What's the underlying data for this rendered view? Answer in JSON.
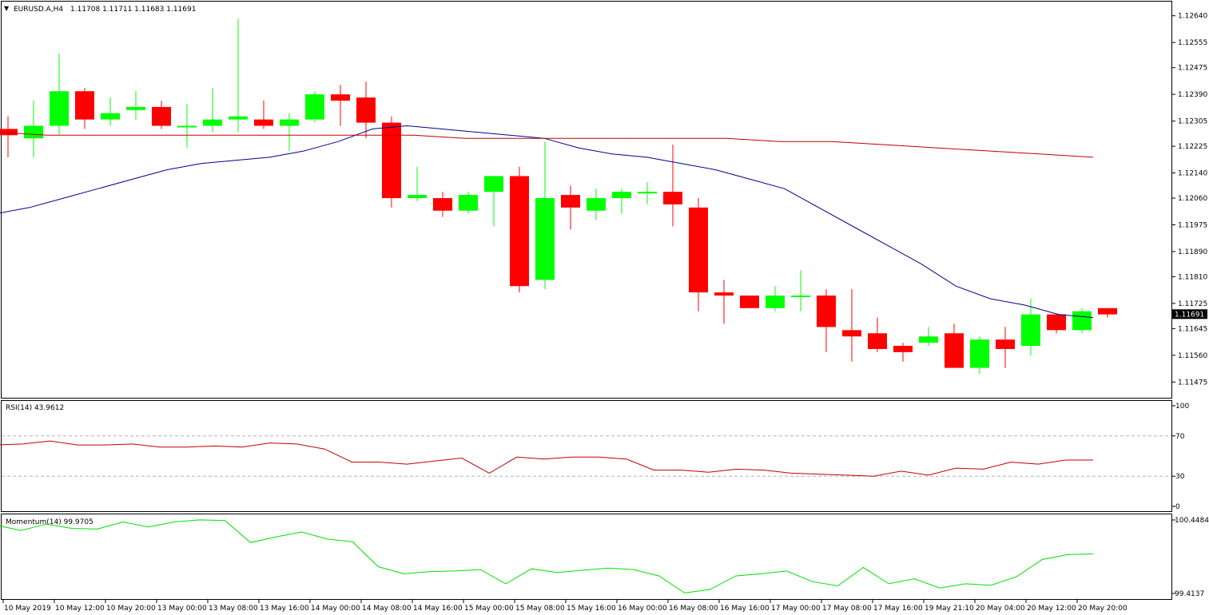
{
  "header": {
    "triangle": "▼",
    "symbol": "EURUSD.A,H4",
    "ohlc": "1.11708 1.11711 1.11683 1.11691"
  },
  "colors": {
    "bull": "#00ff00",
    "bear": "#ff0000",
    "fast_ma": "#00008b",
    "slow_ma": "#c00000",
    "rsi": "#c00000",
    "momentum": "#00e000"
  },
  "chart_data": [
    {
      "type": "candlestick",
      "title": "EURUSD.A,H4",
      "ylim": [
        1.1143,
        1.1268
      ],
      "y_ticks": [
        "1.12640",
        "1.12555",
        "1.12475",
        "1.12390",
        "1.12305",
        "1.12225",
        "1.12140",
        "1.12060",
        "1.11975",
        "1.11890",
        "1.11810",
        "1.11725",
        "1.11645",
        "1.11560",
        "1.11475"
      ],
      "current_price_label": "1.11691",
      "x_labels": [
        "10 May 2019",
        "10 May 12:00",
        "10 May 20:00",
        "13 May 00:00",
        "13 May 08:00",
        "13 May 16:00",
        "14 May 00:00",
        "14 May 08:00",
        "14 May 16:00",
        "15 May 00:00",
        "15 May 08:00",
        "15 May 16:00",
        "16 May 00:00",
        "16 May 08:00",
        "16 May 16:00",
        "17 May 00:00",
        "17 May 08:00",
        "17 May 16:00",
        "19 May 21:10",
        "20 May 04:00",
        "20 May 12:00",
        "20 May 20:00"
      ],
      "candles": [
        {
          "o": 1.1228,
          "h": 1.1232,
          "l": 1.1219,
          "c": 1.1226
        },
        {
          "o": 1.1225,
          "h": 1.1237,
          "l": 1.1219,
          "c": 1.1229
        },
        {
          "o": 1.1229,
          "h": 1.1252,
          "l": 1.1226,
          "c": 1.124
        },
        {
          "o": 1.124,
          "h": 1.1241,
          "l": 1.1228,
          "c": 1.1231
        },
        {
          "o": 1.1231,
          "h": 1.1238,
          "l": 1.1229,
          "c": 1.1233
        },
        {
          "o": 1.1234,
          "h": 1.124,
          "l": 1.1231,
          "c": 1.1235
        },
        {
          "o": 1.1235,
          "h": 1.1237,
          "l": 1.1228,
          "c": 1.1229
        },
        {
          "o": 1.1229,
          "h": 1.1236,
          "l": 1.1222,
          "c": 1.1229
        },
        {
          "o": 1.1229,
          "h": 1.1241,
          "l": 1.1227,
          "c": 1.1231
        },
        {
          "o": 1.1231,
          "h": 1.1263,
          "l": 1.1227,
          "c": 1.1232
        },
        {
          "o": 1.1231,
          "h": 1.1237,
          "l": 1.1228,
          "c": 1.1229
        },
        {
          "o": 1.1229,
          "h": 1.1233,
          "l": 1.1221,
          "c": 1.1231
        },
        {
          "o": 1.1231,
          "h": 1.124,
          "l": 1.123,
          "c": 1.1239
        },
        {
          "o": 1.1239,
          "h": 1.1242,
          "l": 1.1229,
          "c": 1.1237
        },
        {
          "o": 1.1238,
          "h": 1.1243,
          "l": 1.1225,
          "c": 1.123
        },
        {
          "o": 1.123,
          "h": 1.1232,
          "l": 1.1203,
          "c": 1.1206
        },
        {
          "o": 1.1206,
          "h": 1.1216,
          "l": 1.1205,
          "c": 1.1207
        },
        {
          "o": 1.1206,
          "h": 1.1208,
          "l": 1.12,
          "c": 1.1202
        },
        {
          "o": 1.1202,
          "h": 1.1208,
          "l": 1.1201,
          "c": 1.1207
        },
        {
          "o": 1.1208,
          "h": 1.1212,
          "l": 1.1197,
          "c": 1.1213
        },
        {
          "o": 1.1213,
          "h": 1.1216,
          "l": 1.1176,
          "c": 1.1178
        },
        {
          "o": 1.118,
          "h": 1.1224,
          "l": 1.1177,
          "c": 1.1206
        },
        {
          "o": 1.1207,
          "h": 1.121,
          "l": 1.1196,
          "c": 1.1203
        },
        {
          "o": 1.1202,
          "h": 1.1209,
          "l": 1.1199,
          "c": 1.1206
        },
        {
          "o": 1.1206,
          "h": 1.1209,
          "l": 1.1201,
          "c": 1.1208
        },
        {
          "o": 1.1208,
          "h": 1.1211,
          "l": 1.1204,
          "c": 1.1208
        },
        {
          "o": 1.1208,
          "h": 1.1223,
          "l": 1.1197,
          "c": 1.1204
        },
        {
          "o": 1.1203,
          "h": 1.1206,
          "l": 1.117,
          "c": 1.1176
        },
        {
          "o": 1.1176,
          "h": 1.118,
          "l": 1.1166,
          "c": 1.1175
        },
        {
          "o": 1.1175,
          "h": 1.1175,
          "l": 1.1171,
          "c": 1.1171
        },
        {
          "o": 1.1171,
          "h": 1.1178,
          "l": 1.117,
          "c": 1.1175
        },
        {
          "o": 1.1175,
          "h": 1.1183,
          "l": 1.117,
          "c": 1.1175
        },
        {
          "o": 1.1175,
          "h": 1.1177,
          "l": 1.1157,
          "c": 1.1165
        },
        {
          "o": 1.1164,
          "h": 1.1177,
          "l": 1.1154,
          "c": 1.1162
        },
        {
          "o": 1.1163,
          "h": 1.1168,
          "l": 1.1157,
          "c": 1.1158
        },
        {
          "o": 1.1159,
          "h": 1.116,
          "l": 1.1154,
          "c": 1.1157
        },
        {
          "o": 1.116,
          "h": 1.1165,
          "l": 1.1159,
          "c": 1.1162
        },
        {
          "o": 1.1163,
          "h": 1.1166,
          "l": 1.1152,
          "c": 1.1152
        },
        {
          "o": 1.1152,
          "h": 1.1162,
          "l": 1.115,
          "c": 1.1161
        },
        {
          "o": 1.1161,
          "h": 1.1165,
          "l": 1.1152,
          "c": 1.1158
        },
        {
          "o": 1.1159,
          "h": 1.1174,
          "l": 1.1156,
          "c": 1.1169
        },
        {
          "o": 1.1169,
          "h": 1.1169,
          "l": 1.1163,
          "c": 1.1164
        },
        {
          "o": 1.1164,
          "h": 1.1171,
          "l": 1.1163,
          "c": 1.117
        },
        {
          "o": 1.1171,
          "h": 1.1171,
          "l": 1.1168,
          "c": 1.1169
        }
      ],
      "series": [
        {
          "values": [
            1.1201,
            1.1203,
            1.1206,
            1.1209,
            1.1212,
            1.1215,
            1.1217,
            1.1218,
            1.1219,
            1.1221,
            1.1224,
            1.1228,
            1.1229,
            1.1228,
            1.1227,
            1.1226,
            1.1225,
            1.1222,
            1.122,
            1.1219,
            1.1217,
            1.1215,
            1.1212,
            1.1209,
            1.1203,
            1.1197,
            1.1191,
            1.1185,
            1.1178,
            1.1174,
            1.1172,
            1.1169,
            1.1168
          ]
        },
        {
          "values": [
            1.1227,
            1.1226,
            1.1226,
            1.1226,
            1.1226,
            1.1226,
            1.1226,
            1.1226,
            1.1226,
            1.1225,
            1.1225,
            1.1225,
            1.1225,
            1.1225,
            1.1225,
            1.1224,
            1.1224,
            1.1223,
            1.1222,
            1.1221,
            1.122,
            1.1219
          ]
        }
      ]
    },
    {
      "type": "line",
      "title": "RSI(14) 43.9612",
      "ylim": [
        0,
        100
      ],
      "y_ticks": [
        "100",
        "70",
        "30",
        "0"
      ],
      "levels": [
        70,
        30
      ],
      "series": [
        {
          "values": [
            61,
            62,
            65,
            61,
            61,
            62,
            59,
            59,
            60,
            59,
            63,
            62,
            57,
            44,
            44,
            42,
            45,
            48,
            33,
            49,
            47,
            49,
            49,
            47,
            36,
            36,
            34,
            37,
            36,
            33,
            32,
            31,
            30,
            35,
            31,
            38,
            37,
            44,
            42,
            46,
            46
          ]
        }
      ]
    },
    {
      "type": "line",
      "title": "Momentum(14) 99.9705",
      "ylim": [
        99.4137,
        100.4484
      ],
      "y_ticks": [
        "100.4484",
        "99.4137"
      ],
      "series": [
        {
          "values": [
            100.38,
            100.3,
            100.39,
            100.33,
            100.32,
            100.42,
            100.35,
            100.42,
            100.45,
            100.44,
            100.13,
            100.21,
            100.28,
            100.18,
            100.14,
            99.79,
            99.69,
            99.72,
            99.73,
            99.75,
            99.55,
            99.76,
            99.71,
            99.74,
            99.77,
            99.75,
            99.66,
            99.42,
            99.47,
            99.66,
            99.69,
            99.73,
            99.58,
            99.52,
            99.78,
            99.55,
            99.62,
            99.49,
            99.55,
            99.53,
            99.65,
            99.89,
            99.96,
            99.97
          ]
        }
      ]
    }
  ]
}
